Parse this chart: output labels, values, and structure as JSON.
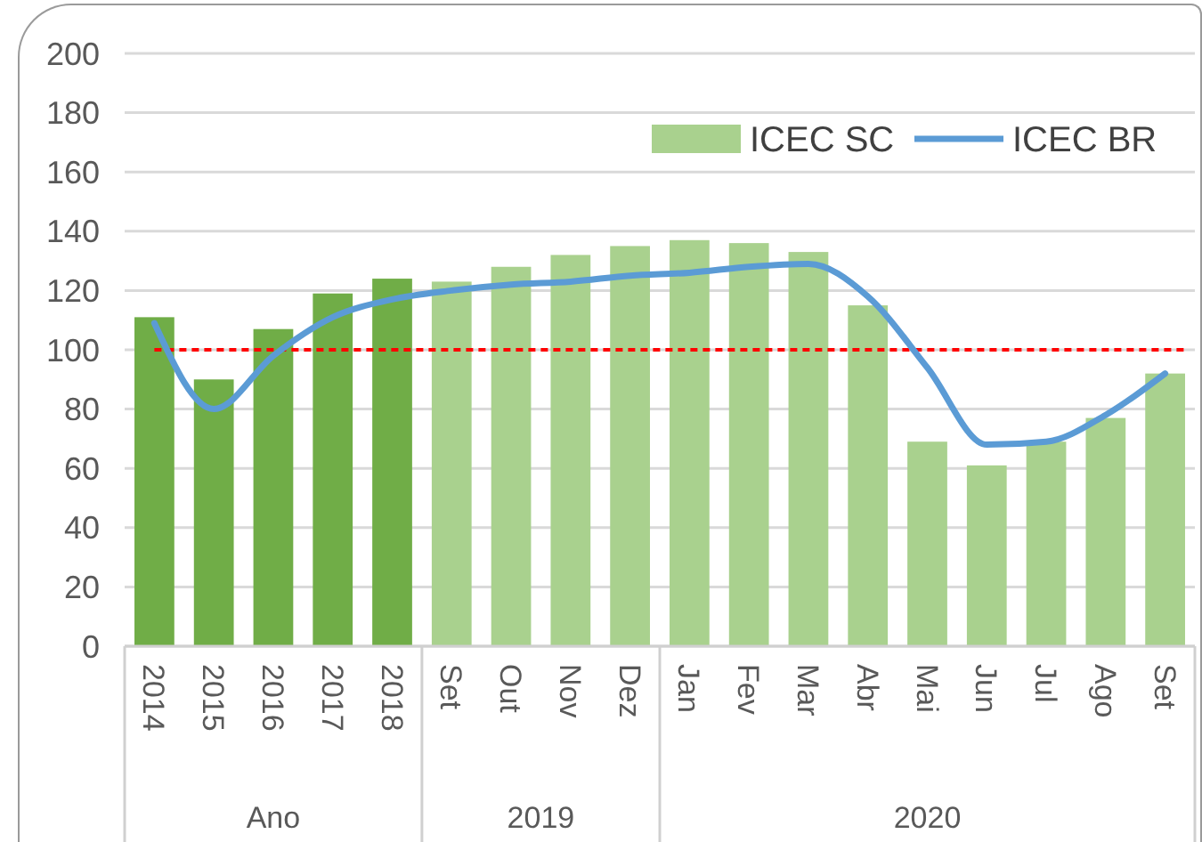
{
  "chart_data": {
    "type": "bar",
    "categories": [
      "2014",
      "2015",
      "2016",
      "2017",
      "2018",
      "Set",
      "Out",
      "Nov",
      "Dez",
      "Jan",
      "Fev",
      "Mar",
      "Abr",
      "Mai",
      "Jun",
      "Jul",
      "Ago",
      "Set"
    ],
    "series": [
      {
        "name": "ICEC SC",
        "color": "#a9d18e",
        "colors": [
          "#70ad47",
          "#70ad47",
          "#70ad47",
          "#70ad47",
          "#70ad47",
          "#a9d18e",
          "#a9d18e",
          "#a9d18e",
          "#a9d18e",
          "#a9d18e",
          "#a9d18e",
          "#a9d18e",
          "#a9d18e",
          "#a9d18e",
          "#a9d18e",
          "#a9d18e",
          "#a9d18e",
          "#a9d18e"
        ],
        "values": [
          111,
          90,
          107,
          119,
          124,
          123,
          128,
          132,
          135,
          137,
          136,
          133,
          115,
          69,
          61,
          69,
          77,
          92
        ]
      },
      {
        "name": "ICEC BR",
        "type": "line",
        "color": "#5b9bd5",
        "values": [
          109,
          80,
          98,
          111,
          117,
          120,
          122,
          123,
          125,
          126,
          128,
          129,
          118,
          94,
          68,
          69,
          78,
          92
        ]
      }
    ],
    "ylim": [
      0,
      200
    ],
    "yticks": [
      0,
      20,
      40,
      60,
      80,
      100,
      120,
      140,
      160,
      180,
      200
    ],
    "grid": "y",
    "legend": "top right",
    "marker": "none",
    "line_style": "solid",
    "ref_lines": [
      {
        "axis": "y",
        "value": 100,
        "color": "#ff0000",
        "line_style": "dashed"
      }
    ],
    "annotations": [
      "Ano",
      "2019",
      "2020"
    ]
  }
}
